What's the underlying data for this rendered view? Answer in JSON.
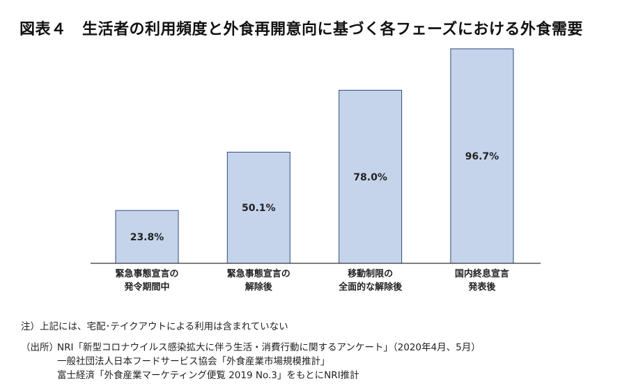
{
  "chart_data": {
    "type": "bar",
    "title": "図表４　生活者の利用頻度と外食再開意向に基づく各フェーズにおける外食需要",
    "categories": [
      [
        "緊急事態宣言の",
        "発令期間中"
      ],
      [
        "緊急事態宣言の",
        "解除後"
      ],
      [
        "移動制限の",
        "全面的な解除後"
      ],
      [
        "国内終息宣言",
        "発表後"
      ]
    ],
    "values": [
      23.8,
      50.1,
      78.0,
      96.7
    ],
    "data_labels": [
      "23.8%",
      "50.1%",
      "78.0%",
      "96.7%"
    ],
    "xlabel": "",
    "ylabel": "",
    "ylim": [
      0,
      100
    ],
    "grid": false,
    "colors": {
      "bar_fill": "#c6d4eb",
      "bar_stroke": "#2e4a7d",
      "axis": "#333333"
    }
  },
  "notes": {
    "note": "注）上記には、宅配･テイクアウトによる利用は含まれていない",
    "source_label": "（出所）",
    "sources": [
      "NRI「新型コロナウイルス感染拡大に伴う生活・消費行動に関するアンケート」（2020年4月、5月）",
      "一般社団法人日本フードサービス協会「外食産業市場規模推計」",
      "富士経済「外食産業マーケティング便覧 2019 No.3」をもとにNRI推計"
    ]
  }
}
